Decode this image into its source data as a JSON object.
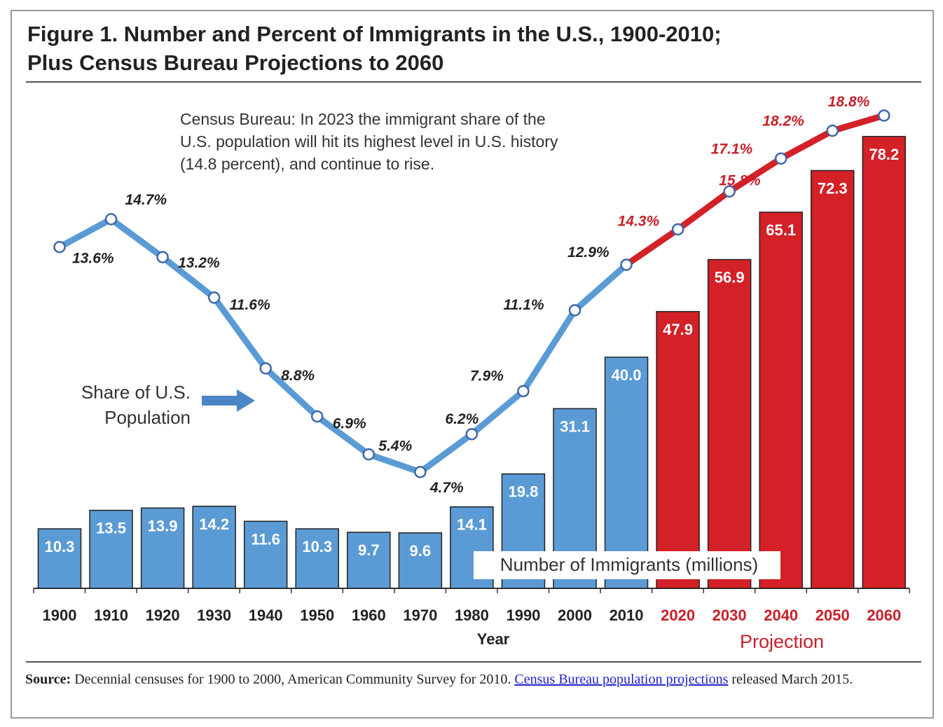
{
  "title_line1": "Figure 1. Number and Percent of Immigrants in the U.S., 1900-2010;",
  "title_line2": "Plus Census Bureau Projections to 2060",
  "annotation": [
    "Census Bureau: In 2023 the immigrant share of the",
    "U.S. population will hit its highest level in U.S. history",
    "(14.8 percent), and continue to rise."
  ],
  "share_label": [
    "Share of U.S.",
    "Population"
  ],
  "source": {
    "label": "Source:",
    "text": " Decennial censuses for 1900 to 2000, American Community Survey for 2010. ",
    "link": "Census Bureau population projections",
    "tail": " released March 2015."
  },
  "chart_data": {
    "type": "bar+line",
    "categories": [
      "1900",
      "1910",
      "1920",
      "1930",
      "1940",
      "1950",
      "1960",
      "1970",
      "1980",
      "1990",
      "2000",
      "2010",
      "2020",
      "2030",
      "2040",
      "2050",
      "2060"
    ],
    "series": [
      {
        "name": "Number of Immigrants (millions)",
        "type": "bar",
        "values": [
          10.3,
          13.5,
          13.9,
          14.2,
          11.6,
          10.3,
          9.7,
          9.6,
          14.1,
          19.8,
          31.1,
          40.0,
          47.9,
          56.9,
          65.1,
          72.3,
          78.2
        ]
      },
      {
        "name": "Share of U.S. Population",
        "type": "line",
        "values": [
          13.6,
          14.7,
          13.2,
          11.6,
          8.8,
          6.9,
          5.4,
          4.7,
          6.2,
          7.9,
          11.1,
          12.9,
          14.3,
          15.8,
          17.1,
          18.2,
          18.8
        ],
        "unit": "%"
      }
    ],
    "projection_start": "2020",
    "xlabel": "Year",
    "projection_label": "Projection",
    "colors": {
      "historical": "#5b9bd5",
      "projection": "#d42027",
      "projection_text": "#c8202a"
    },
    "grid": false
  }
}
